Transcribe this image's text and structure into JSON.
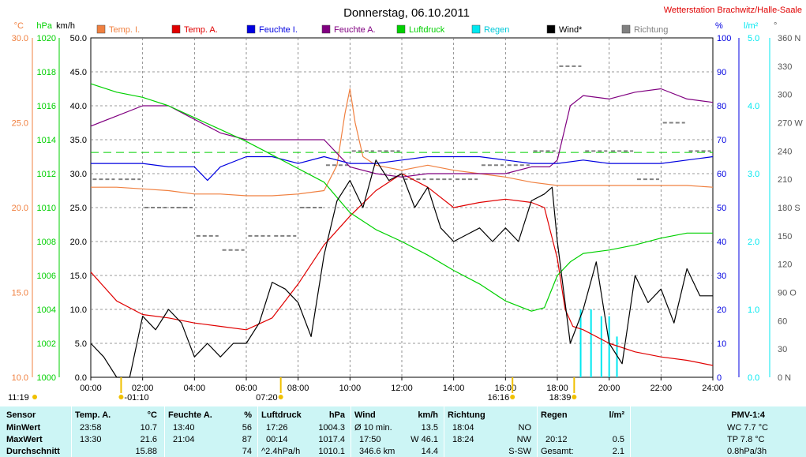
{
  "title": "Donnerstag, 06.10.2011",
  "station": "Wetterstation Brachwitz/Halle-Saale",
  "axes_units": {
    "temp": "°C",
    "pressure": "hPa",
    "wind": "km/h",
    "humidity": "%",
    "rain": "l/m²",
    "direction": "°"
  },
  "colors": {
    "temp_i": "#f08040",
    "temp_a": "#e00000",
    "feuchte_i": "#0000e0",
    "feuchte_a": "#800080",
    "luftdruck": "#00d000",
    "regen": "#00e8f0",
    "wind": "#000000",
    "richtung": "#808080"
  },
  "legend": [
    "Temp. I.",
    "Temp. A.",
    "Feuchte I.",
    "Feuchte A.",
    "Luftdruck",
    "Regen",
    "Wind*",
    "Richtung"
  ],
  "chart_data": {
    "type": "line",
    "xlabel": "",
    "x_ticks": [
      "00:00",
      "02:00",
      "04:00",
      "06:00",
      "08:00",
      "10:00",
      "12:00",
      "14:00",
      "16:00",
      "18:00",
      "20:00",
      "22:00",
      "24:00"
    ],
    "axes": {
      "temp": {
        "range": [
          10,
          30
        ],
        "ticks": [
          "30.0",
          "25.0",
          "20.0",
          "15.0",
          "10.0"
        ]
      },
      "pressure": {
        "range": [
          1000,
          1020
        ],
        "ticks": [
          "1020",
          "1018",
          "1016",
          "1014",
          "1012",
          "1010",
          "1008",
          "1006",
          "1004",
          "1002",
          "1000"
        ]
      },
      "wind": {
        "range": [
          0,
          50
        ],
        "ticks": [
          "50.0",
          "45.0",
          "40.0",
          "35.0",
          "30.0",
          "25.0",
          "20.0",
          "15.0",
          "10.0",
          "5.0",
          "0.0"
        ]
      },
      "humidity": {
        "range": [
          0,
          100
        ],
        "ticks": [
          "100",
          "90",
          "80",
          "70",
          "60",
          "50",
          "40",
          "30",
          "20",
          "10",
          "0"
        ]
      },
      "rain": {
        "range": [
          0,
          5
        ],
        "ticks": [
          "5.0",
          "4.0",
          "3.0",
          "2.0",
          "1.0",
          "0.0"
        ]
      },
      "direction": {
        "range": [
          0,
          360
        ],
        "ticks": [
          "360 N",
          "330",
          "300",
          "270 W",
          "240",
          "210",
          "180 S",
          "150",
          "120",
          "90 O",
          "60",
          "30",
          "0 N"
        ]
      }
    },
    "reference_line": {
      "series": "Luftdruck",
      "value": 1013.25
    },
    "series": [
      {
        "name": "Temp. I.",
        "axis": "temp",
        "x": [
          0,
          1,
          2,
          3,
          4,
          5,
          6,
          7,
          8,
          9,
          9.5,
          9.8,
          10,
          10.2,
          10.5,
          11,
          12,
          13,
          14,
          15,
          16,
          17,
          18,
          19,
          20,
          21,
          22,
          23,
          24
        ],
        "values": [
          21.2,
          21.2,
          21.1,
          21.0,
          20.8,
          20.8,
          20.7,
          20.7,
          20.8,
          21.0,
          22.5,
          25.5,
          27.0,
          25.0,
          23.0,
          22.5,
          22.2,
          22.5,
          22.2,
          22.0,
          21.8,
          21.5,
          21.3,
          21.3,
          21.3,
          21.3,
          21.3,
          21.3,
          21.2
        ]
      },
      {
        "name": "Temp. A.",
        "axis": "temp",
        "x": [
          0,
          1,
          2,
          3,
          4,
          5,
          6,
          7,
          8,
          9,
          10,
          11,
          12,
          13,
          14,
          15,
          16,
          17,
          17.5,
          18,
          18.3,
          18.6,
          19,
          20,
          21,
          22,
          23,
          24
        ],
        "values": [
          16.2,
          14.5,
          13.7,
          13.5,
          13.2,
          13.0,
          12.8,
          13.5,
          15.5,
          17.8,
          19.5,
          21.0,
          22.0,
          21.2,
          20.0,
          20.3,
          20.5,
          20.3,
          20.0,
          17.0,
          14.0,
          13.0,
          12.8,
          12.0,
          11.5,
          11.2,
          11.0,
          10.7
        ]
      },
      {
        "name": "Feuchte A.",
        "axis": "humidity",
        "x": [
          0,
          1,
          2,
          3,
          4,
          5,
          6,
          7,
          8,
          9,
          10,
          11,
          12,
          13,
          14,
          15,
          16,
          17,
          17.7,
          18,
          18.5,
          19,
          20,
          21,
          22,
          23,
          24
        ],
        "values": [
          74,
          77,
          80,
          80,
          76,
          72,
          70,
          70,
          70,
          70,
          62,
          60,
          59,
          60,
          60,
          60,
          60,
          62,
          62,
          64,
          80,
          83,
          82,
          84,
          85,
          82,
          81
        ]
      },
      {
        "name": "Feuchte I.",
        "axis": "humidity",
        "x": [
          0,
          1,
          2,
          3,
          4,
          4.5,
          5,
          6,
          7,
          8,
          9,
          10,
          11,
          12,
          13,
          14,
          15,
          16,
          17,
          18,
          19,
          20,
          21,
          22,
          23,
          24
        ],
        "values": [
          63,
          63,
          63,
          62,
          62,
          58,
          62,
          65,
          65,
          63,
          65,
          63,
          63,
          64,
          65,
          65,
          65,
          64,
          63,
          63,
          64,
          63,
          63,
          63,
          64,
          65
        ]
      },
      {
        "name": "Luftdruck",
        "axis": "pressure",
        "x": [
          0,
          1,
          2,
          3,
          4,
          5,
          6,
          7,
          8,
          9,
          10,
          11,
          12,
          13,
          14,
          15,
          16,
          17,
          17.5,
          18,
          18.5,
          19,
          20,
          21,
          22,
          23,
          24
        ],
        "values": [
          1017.3,
          1016.8,
          1016.5,
          1016.0,
          1015.3,
          1014.6,
          1013.9,
          1013.1,
          1012.3,
          1011.5,
          1009.7,
          1008.7,
          1008.0,
          1007.2,
          1006.3,
          1005.5,
          1004.5,
          1003.9,
          1004.1,
          1006.0,
          1006.8,
          1007.3,
          1007.5,
          1007.8,
          1008.2,
          1008.5,
          1008.5
        ]
      },
      {
        "name": "Wind*",
        "axis": "wind",
        "x": [
          0,
          0.5,
          1,
          1.5,
          2,
          2.5,
          3,
          3.5,
          4,
          4.5,
          5,
          5.5,
          6,
          6.5,
          7,
          7.5,
          8,
          8.5,
          9,
          9.5,
          10,
          10.5,
          11,
          11.5,
          12,
          12.5,
          13,
          13.5,
          14,
          14.5,
          15,
          15.5,
          16,
          16.5,
          17,
          17.5,
          17.8,
          18,
          18.5,
          19,
          19.5,
          20,
          20.5,
          21,
          21.5,
          22,
          22.5,
          23,
          23.5,
          24
        ],
        "values": [
          5,
          3,
          0,
          0,
          9,
          7,
          10,
          8,
          3,
          5,
          3,
          5,
          5,
          8,
          14,
          13,
          11,
          6,
          18,
          26,
          29,
          25,
          32,
          29,
          30,
          25,
          28,
          22,
          20,
          21,
          22,
          20,
          22,
          20,
          26,
          27,
          28,
          20,
          5,
          10,
          17,
          5,
          2,
          15,
          11,
          13,
          8,
          16,
          12,
          12
        ]
      }
    ],
    "rain_bars": {
      "x": [
        18.9,
        19.3,
        19.7,
        20.0,
        20.3
      ],
      "values": [
        1.0,
        1.0,
        0.9,
        0.9,
        0.6
      ]
    },
    "direction_samples": {
      "x": [
        0.5,
        1.5,
        2.5,
        3.5,
        4.5,
        5.5,
        6.5,
        7.5,
        8.5,
        9.5,
        10.5,
        11.5,
        12.5,
        13.5,
        14.5,
        15.5,
        16.5,
        17.5,
        18.5,
        19.5,
        20.5,
        21.5,
        22.5,
        23.5
      ],
      "values": [
        210,
        210,
        180,
        180,
        150,
        135,
        150,
        150,
        180,
        225,
        240,
        240,
        210,
        210,
        210,
        225,
        225,
        240,
        330,
        240,
        240,
        210,
        270,
        240
      ]
    },
    "markers": [
      {
        "x": 1.17,
        "label": "-01:10"
      },
      {
        "x": 7.33,
        "label": "07:20"
      },
      {
        "x": 16.27,
        "label": "16:16"
      },
      {
        "x": 18.65,
        "label": "18:39"
      }
    ],
    "daylength": "11:19"
  },
  "stats": {
    "sensor": {
      "header": "Sensor",
      "rows": [
        "MinWert",
        "MaxWert",
        "Durchschnitt"
      ]
    },
    "temp": {
      "header": "Temp. A.",
      "unit": "°C",
      "rows": [
        [
          "23:58",
          "10.7"
        ],
        [
          "13:30",
          "21.6"
        ],
        [
          "",
          "15.88"
        ]
      ]
    },
    "feuchte": {
      "header": "Feuchte A.",
      "unit": "%",
      "rows": [
        [
          "13:40",
          "56"
        ],
        [
          "21:04",
          "87"
        ],
        [
          "",
          "74"
        ]
      ]
    },
    "luftdruck": {
      "header": "Luftdruck",
      "unit": "hPa",
      "rows": [
        [
          "17:26",
          "1004.3"
        ],
        [
          "00:14",
          "1017.4"
        ],
        [
          "^2.4hPa/h",
          "1010.1"
        ]
      ]
    },
    "wind": {
      "header": "Wind",
      "unit": "km/h",
      "rows": [
        [
          "Ø 10 min.",
          "13.5"
        ],
        [
          "17:50",
          "W 46.1"
        ],
        [
          "346.6 km",
          "14.4"
        ]
      ]
    },
    "richtung": {
      "header": "Richtung",
      "rows": [
        [
          "18:04",
          "NO"
        ],
        [
          "18:24",
          "NW"
        ],
        [
          "",
          "S-SW"
        ]
      ]
    },
    "regen": {
      "header": "Regen",
      "unit": "l/m²",
      "rows": [
        [
          "",
          ""
        ],
        [
          "20:12",
          "0.5"
        ],
        [
          "Gesamt:",
          "2.1"
        ]
      ]
    },
    "pmv": {
      "header": "PMV-1:4",
      "rows": [
        "WC 7.7 °C",
        "TP 7.8 °C",
        "0.8hPa/3h"
      ]
    }
  }
}
